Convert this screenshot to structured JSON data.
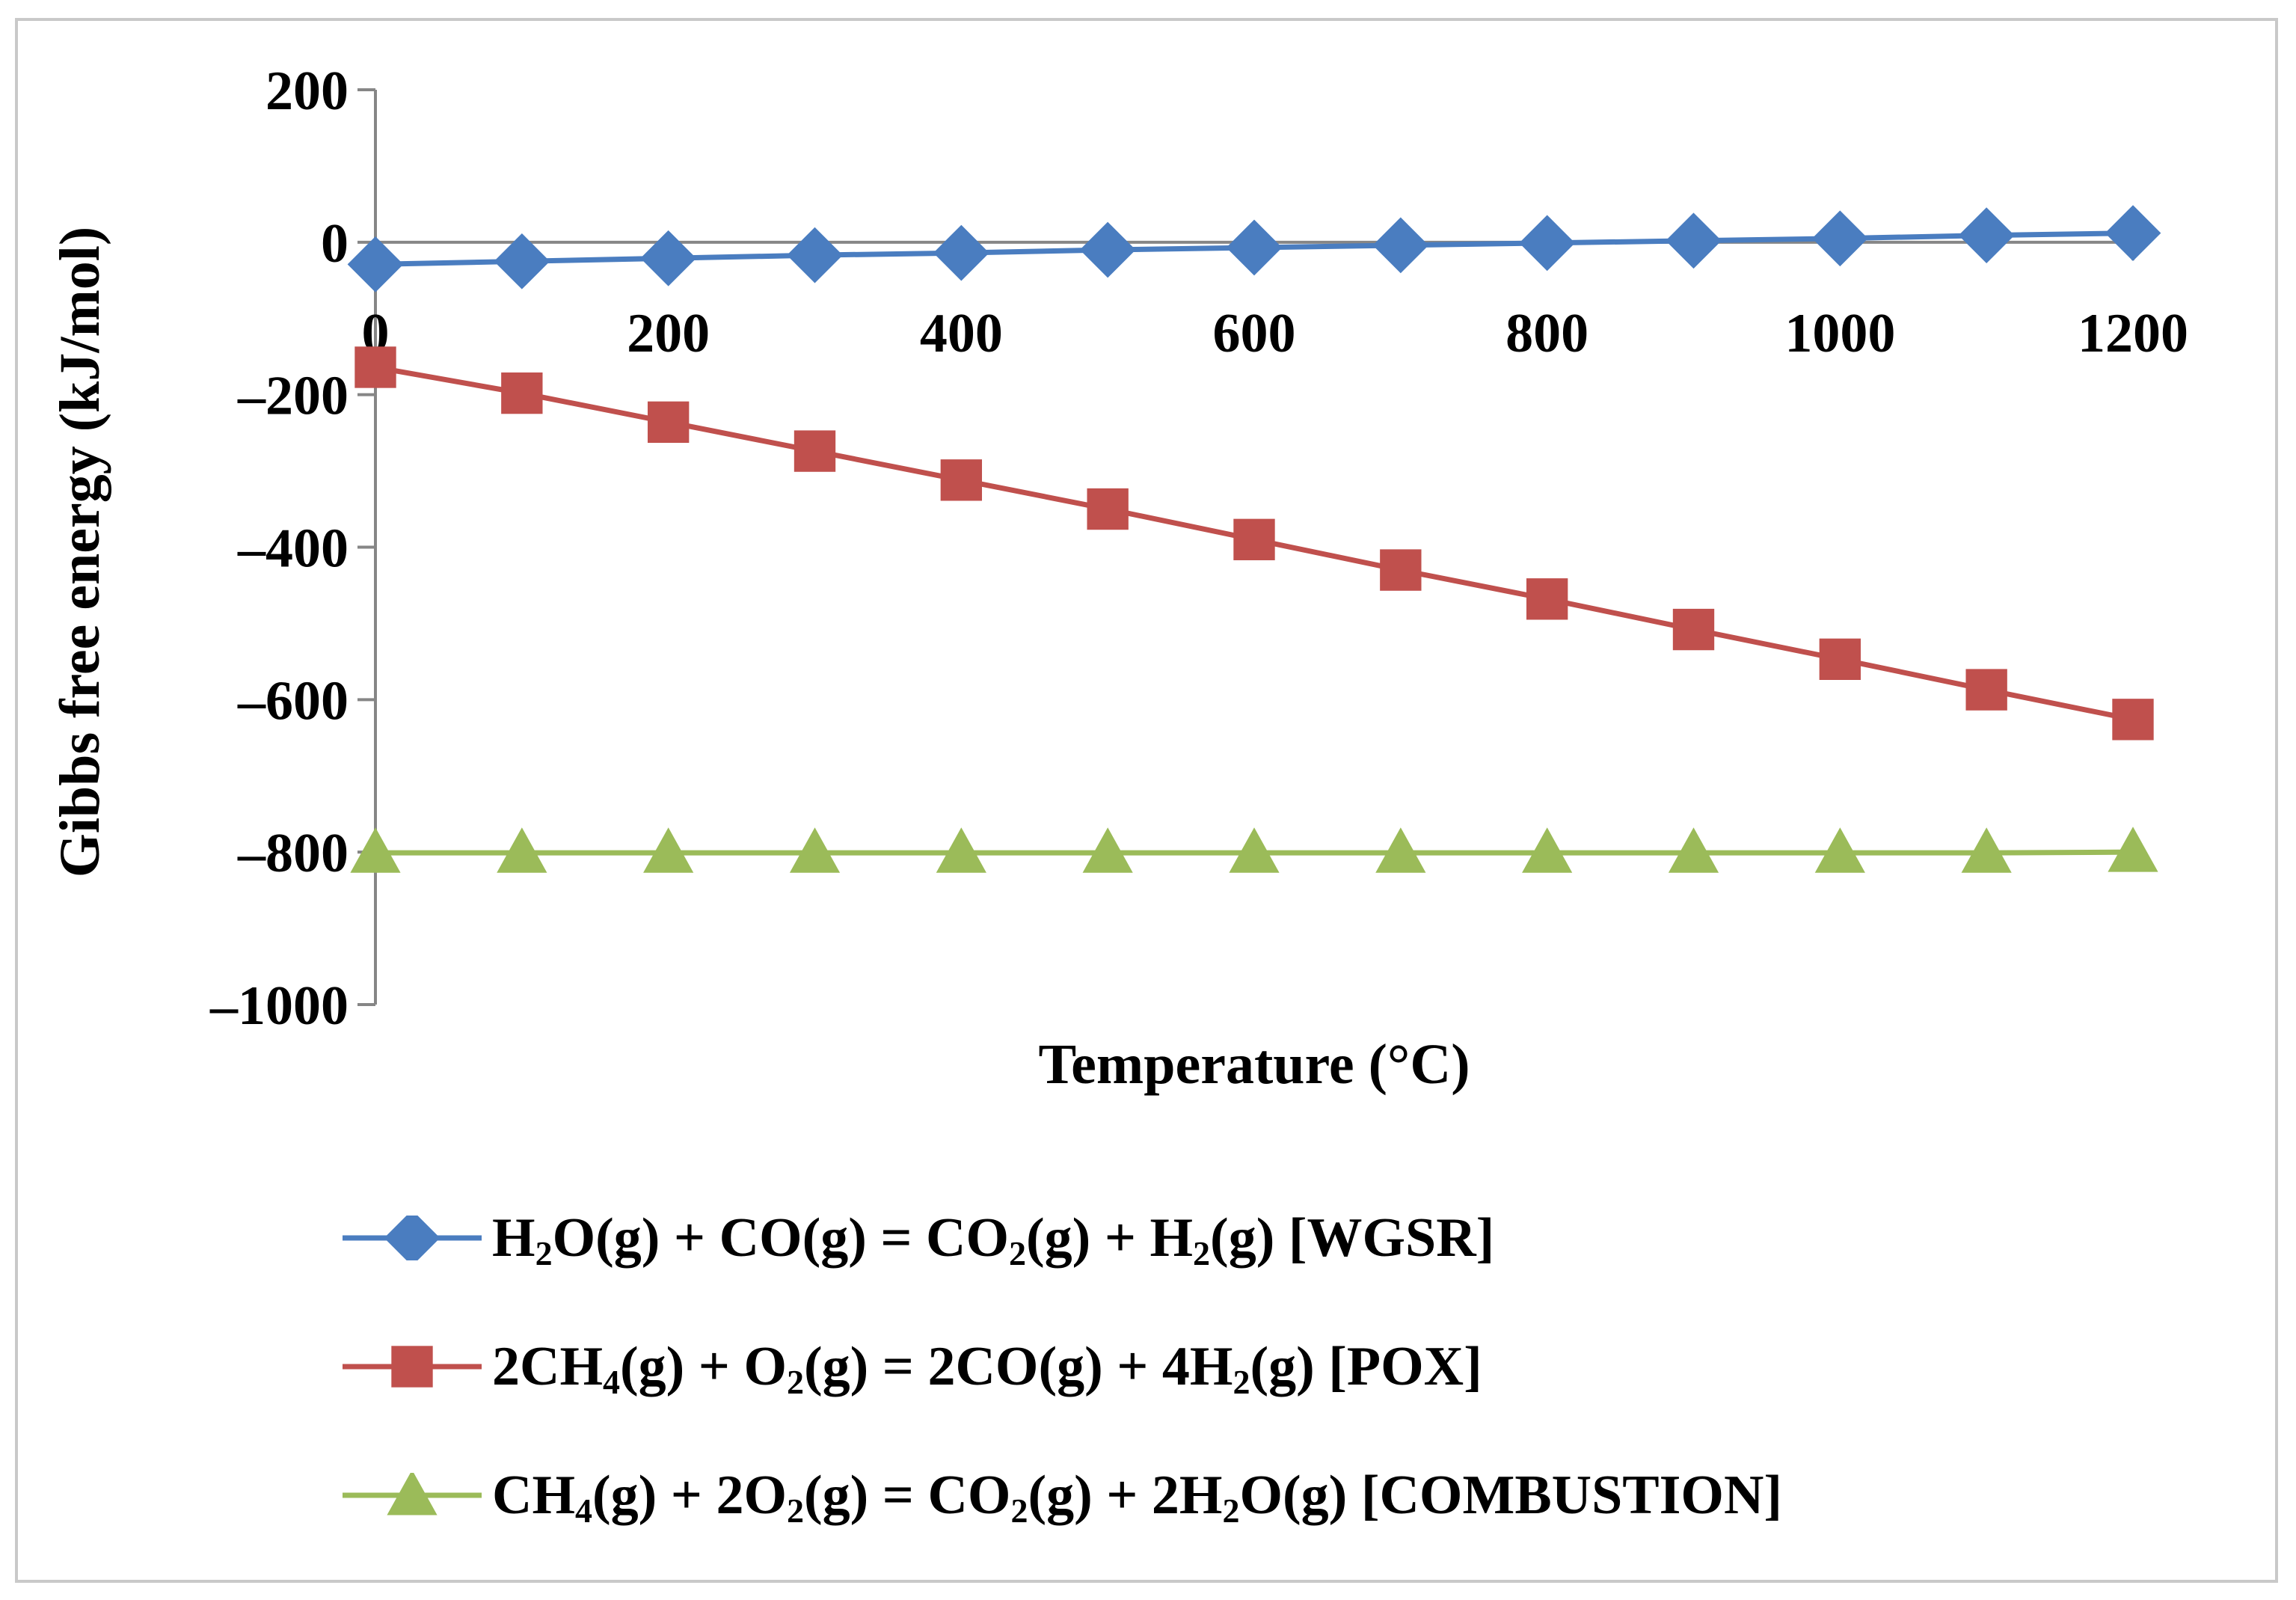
{
  "chart_data": {
    "type": "line",
    "title": "",
    "xlabel": "Temperature (°C)",
    "ylabel": "Gibbs free energy (kJ/mol)",
    "xlim": [
      0,
      1200
    ],
    "ylim": [
      -1000,
      200
    ],
    "x_ticks": [
      "0",
      "200",
      "400",
      "600",
      "800",
      "1000",
      "1200"
    ],
    "y_ticks": [
      "200",
      "0",
      "–200",
      "–400",
      "–600",
      "–800",
      "–1000"
    ],
    "x": [
      0,
      100,
      200,
      300,
      400,
      500,
      600,
      700,
      800,
      900,
      1000,
      1100,
      1200
    ],
    "legend_position": "bottom",
    "series": [
      {
        "name": "H2O(g) + CO(g) = CO2(g) + H2(g) [WGSR]",
        "label_parts": [
          {
            "t": "H"
          },
          {
            "t": "2",
            "sub": true
          },
          {
            "t": "O(g) + CO(g) = CO"
          },
          {
            "t": "2",
            "sub": true
          },
          {
            "t": "(g) + H"
          },
          {
            "t": "2",
            "sub": true
          },
          {
            "t": "(g) [WGSR]"
          }
        ],
        "color": "#4a7dc0",
        "marker": "diamond",
        "values": [
          -29,
          -25,
          -21,
          -17,
          -14,
          -10,
          -7,
          -4,
          -1,
          2,
          5,
          9,
          12
        ]
      },
      {
        "name": "2CH4(g) + O2(g) = 2CO(g) + 4H2(g) [POX]",
        "label_parts": [
          {
            "t": "2CH"
          },
          {
            "t": "4",
            "sub": true
          },
          {
            "t": "(g) + O"
          },
          {
            "t": "2",
            "sub": true
          },
          {
            "t": "(g) = 2CO(g) + 4H"
          },
          {
            "t": "2",
            "sub": true
          },
          {
            "t": "(g) [POX]"
          }
        ],
        "color": "#c0504d",
        "marker": "square",
        "values": [
          -164,
          -198,
          -236,
          -274,
          -312,
          -350,
          -390,
          -430,
          -468,
          -508,
          -547,
          -587,
          -626
        ]
      },
      {
        "name": "CH4(g) + 2O2(g) = CO2(g) + 2H2O(g) [COMBUSTION]",
        "label_parts": [
          {
            "t": "CH"
          },
          {
            "t": "4",
            "sub": true
          },
          {
            "t": "(g) + 2O"
          },
          {
            "t": "2",
            "sub": true
          },
          {
            "t": "(g) = CO"
          },
          {
            "t": "2",
            "sub": true
          },
          {
            "t": "(g) + 2H"
          },
          {
            "t": "2",
            "sub": true
          },
          {
            "t": "O(g) [COMBUSTION]"
          }
        ],
        "color": "#9bbb59",
        "marker": "triangle",
        "values": [
          -801,
          -801,
          -801,
          -801,
          -801,
          -801,
          -801,
          -801,
          -801,
          -801,
          -801,
          -801,
          -800
        ]
      }
    ]
  }
}
